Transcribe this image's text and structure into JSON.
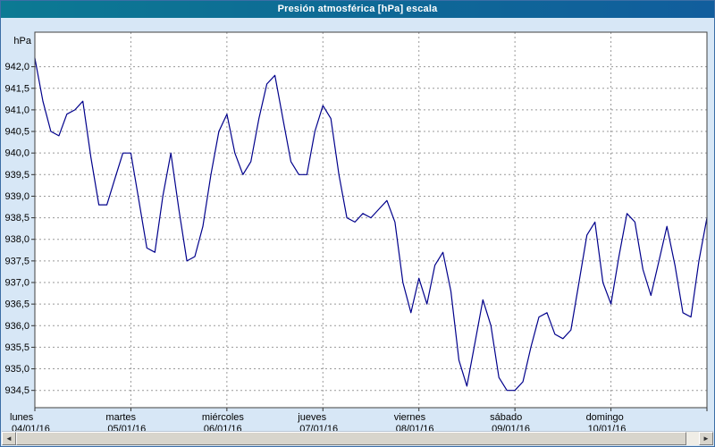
{
  "window": {
    "title": "Presión atmosférica [hPa] escala"
  },
  "scrollbar": {
    "left_arrow": "◄",
    "right_arrow": "►"
  },
  "chart_data": {
    "type": "line",
    "title": "Presión atmosférica [hPa] escala",
    "xlabel": "",
    "ylabel": "hPa",
    "y_axis_unit": "hPa",
    "ylim": [
      934.1,
      942.8
    ],
    "x_range_days": [
      0,
      7
    ],
    "grid": {
      "style": "dashed",
      "horizontal_step": 0.5,
      "vertical": "daily"
    },
    "legend": "none",
    "y_ticks": [
      942.0,
      941.5,
      941.0,
      940.5,
      940.0,
      939.5,
      939.0,
      938.5,
      938.0,
      937.5,
      937.0,
      936.5,
      936.0,
      935.5,
      935.0,
      934.5
    ],
    "y_tick_labels": [
      "942,0",
      "941,5",
      "941,0",
      "940,5",
      "940,0",
      "939,5",
      "939,0",
      "938,5",
      "938,0",
      "937,5",
      "937,0",
      "936,5",
      "936,0",
      "935,5",
      "935,0",
      "934,5"
    ],
    "x_days": [
      {
        "name": "lunes",
        "date": "04/01/16"
      },
      {
        "name": "martes",
        "date": "05/01/16"
      },
      {
        "name": "miércoles",
        "date": "06/01/16"
      },
      {
        "name": "jueves",
        "date": "07/01/16"
      },
      {
        "name": "viernes",
        "date": "08/01/16"
      },
      {
        "name": "sábado",
        "date": "09/01/16"
      },
      {
        "name": "domingo",
        "date": "10/01/16"
      }
    ],
    "series": [
      {
        "name": "Presión atmosférica",
        "color": "#00008b",
        "sample_interval_hours": 2,
        "values": [
          942.2,
          941.2,
          940.5,
          940.4,
          940.9,
          941.0,
          941.2,
          939.9,
          938.8,
          938.8,
          939.4,
          940.0,
          940.0,
          938.9,
          937.8,
          937.7,
          939.0,
          940.0,
          938.7,
          937.5,
          937.6,
          938.3,
          939.5,
          940.5,
          940.9,
          940.0,
          939.5,
          939.8,
          940.8,
          941.6,
          941.8,
          940.8,
          939.8,
          939.5,
          939.5,
          940.5,
          941.1,
          940.8,
          939.5,
          938.5,
          938.4,
          938.6,
          938.5,
          938.7,
          938.9,
          938.4,
          937.0,
          936.3,
          937.1,
          936.5,
          937.4,
          937.7,
          936.8,
          935.2,
          934.6,
          935.6,
          936.6,
          936.0,
          934.8,
          934.5,
          934.5,
          934.7,
          935.5,
          936.2,
          936.3,
          935.8,
          935.7,
          935.9,
          937.0,
          938.1,
          938.4,
          937.0,
          936.5,
          937.6,
          938.6,
          938.4,
          937.3,
          936.7,
          937.5,
          938.3,
          937.4,
          936.3,
          936.2,
          937.5,
          938.5
        ]
      }
    ]
  }
}
